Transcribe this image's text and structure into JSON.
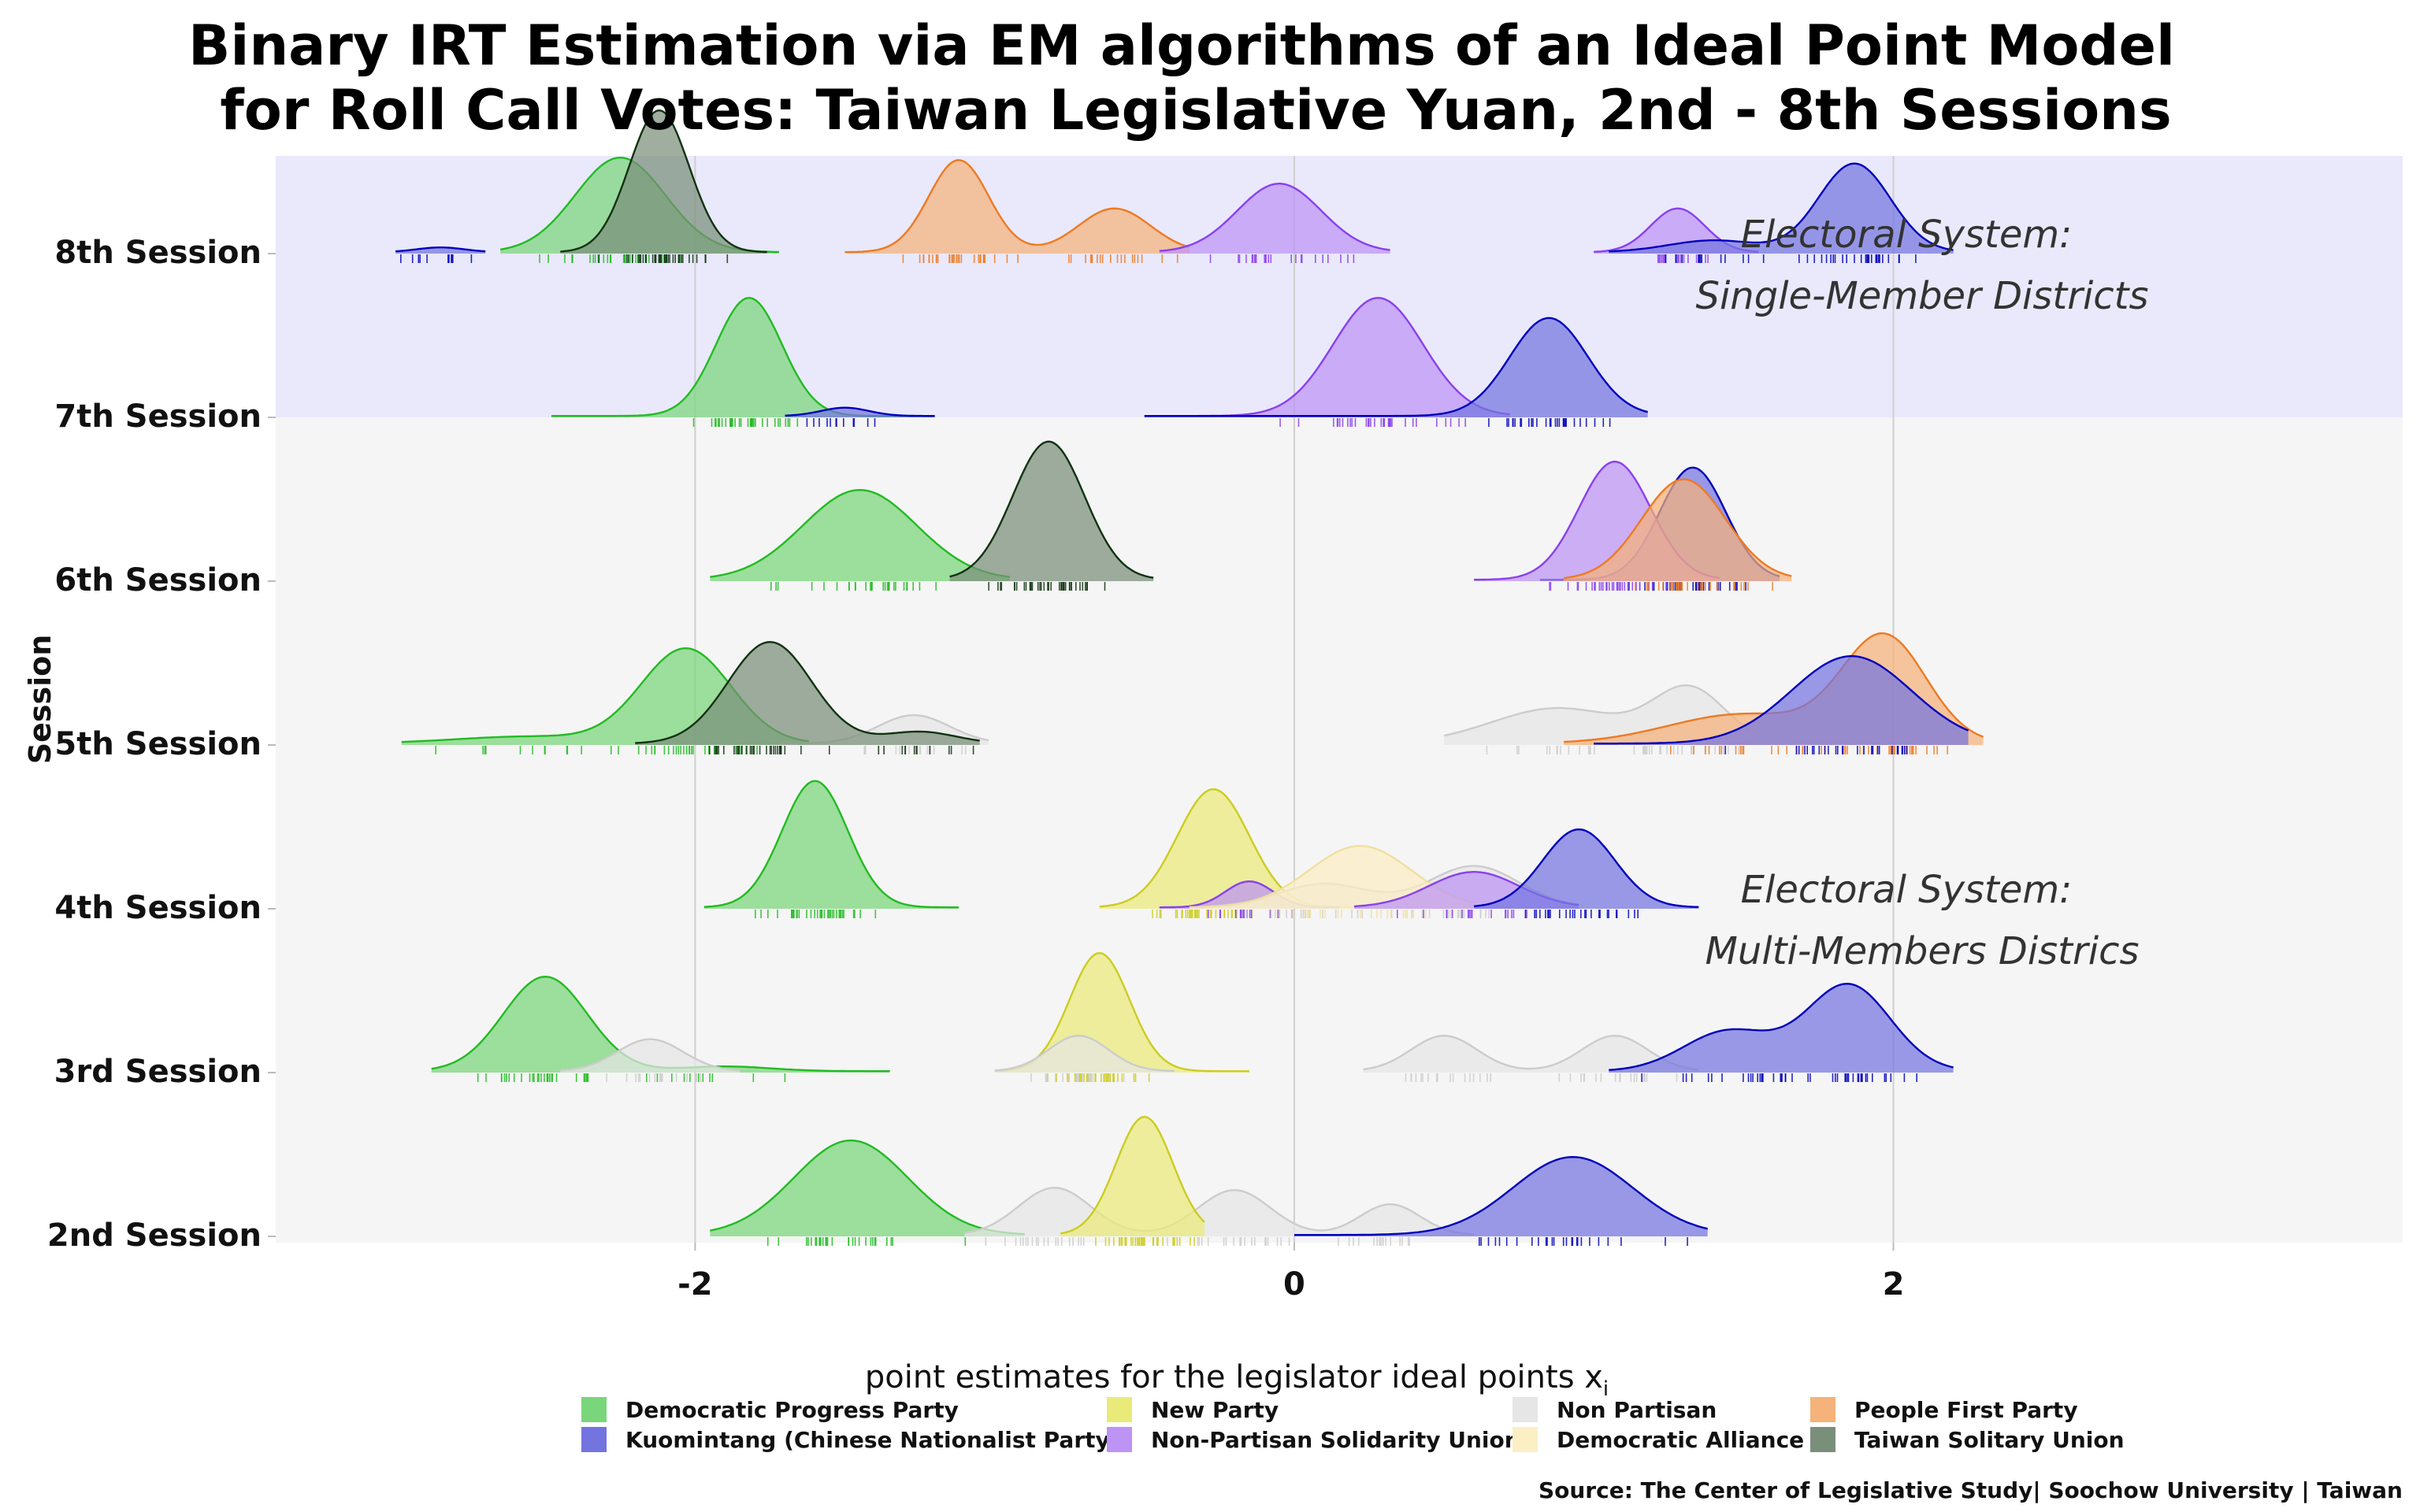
{
  "chart_data": {
    "type": "ridgeline",
    "title_lines": [
      "Binary IRT Estimation via EM algorithms  of an Ideal Point Model",
      "for Roll Call Votes: Taiwan Legislative Yuan, 2nd - 8th Sessions"
    ],
    "xlabel": "point estimates for the legislator ideal points x",
    "xlabel_subscript": "i",
    "ylabel": "Session",
    "xlim": [
      -3.4,
      3.7
    ],
    "x_ticks": [
      -2,
      0,
      2
    ],
    "x_tick_labels": [
      "-2",
      "0",
      "2"
    ],
    "grid": true,
    "sessions": [
      "2nd Session",
      "3rd Session",
      "4th Session",
      "5th Session",
      "6th Session",
      "7th Session",
      "8th Session"
    ],
    "annotations": [
      {
        "lines": [
          "Electoral System:",
          "Single-Member Districts"
        ],
        "session_anchor": "8th Session"
      },
      {
        "lines": [
          "Electoral System:",
          "Multi-Members Districs"
        ],
        "session_anchor": "4th Session"
      }
    ],
    "regions": [
      {
        "sessions": [
          "7th Session",
          "8th Session"
        ],
        "color": "#e9e9fb"
      },
      {
        "sessions": [
          "2nd Session",
          "3rd Session",
          "4th Session",
          "5th Session",
          "6th Session"
        ],
        "color": "#f5f5f5"
      }
    ],
    "parties": [
      {
        "name": "Democratic Progress Party",
        "fill": "#7ad67a",
        "stroke": "#22bb22"
      },
      {
        "name": "Kuomintang (Chinese Nationalist Party)",
        "fill": "#7474e0",
        "stroke": "#0000bb"
      },
      {
        "name": "New Party",
        "fill": "#eaea7a",
        "stroke": "#cccc22"
      },
      {
        "name": "Non-Partisan Solidarity Union",
        "fill": "#bd93f5",
        "stroke": "#8a40ee"
      },
      {
        "name": "Non Partisan",
        "fill": "#e6e6e6",
        "stroke": "#cccccc"
      },
      {
        "name": "Democratic Alliance",
        "fill": "#fcefc4",
        "stroke": "#f0dfa0"
      },
      {
        "name": "People First Party",
        "fill": "#f5b27a",
        "stroke": "#ee7a22"
      },
      {
        "name": "Taiwan Solitary Union",
        "fill": "#7a8f7a",
        "stroke": "#113311"
      }
    ],
    "series": [
      {
        "session": "2nd Session",
        "party": "Democratic Progress Party",
        "range": [
          -1.95,
          -0.9
        ],
        "peaks": [
          {
            "mu": -1.48,
            "sd": 0.19,
            "h": 0.8
          }
        ]
      },
      {
        "session": "2nd Session",
        "party": "Non Partisan",
        "range": [
          -1.1,
          0.6
        ],
        "peaks": [
          {
            "mu": -0.8,
            "sd": 0.12,
            "h": 0.4
          },
          {
            "mu": -0.2,
            "sd": 0.12,
            "h": 0.38
          },
          {
            "mu": 0.32,
            "sd": 0.1,
            "h": 0.26
          }
        ]
      },
      {
        "session": "2nd Session",
        "party": "New Party",
        "range": [
          -0.78,
          -0.3
        ],
        "peaks": [
          {
            "mu": -0.5,
            "sd": 0.095,
            "h": 1.0
          }
        ]
      },
      {
        "session": "2nd Session",
        "party": "Kuomintang (Chinese Nationalist Party)",
        "range": [
          0.0,
          1.38
        ],
        "peaks": [
          {
            "mu": 0.93,
            "sd": 0.2,
            "h": 0.66
          }
        ]
      },
      {
        "session": "3rd Session",
        "party": "Democratic Progress Party",
        "range": [
          -2.88,
          -1.35
        ],
        "peaks": [
          {
            "mu": -2.5,
            "sd": 0.14,
            "h": 0.8
          },
          {
            "mu": -1.9,
            "sd": 0.15,
            "h": 0.04
          }
        ]
      },
      {
        "session": "3rd Session",
        "party": "Non Partisan",
        "range": [
          -2.45,
          -1.85
        ],
        "peaks": [
          {
            "mu": -2.15,
            "sd": 0.11,
            "h": 0.27
          }
        ]
      },
      {
        "session": "3rd Session",
        "party": "New Party",
        "range": [
          -1.0,
          -0.15
        ],
        "peaks": [
          {
            "mu": -0.65,
            "sd": 0.1,
            "h": 1.0
          }
        ]
      },
      {
        "session": "3rd Session",
        "party": "Non Partisan",
        "range": [
          -1.0,
          -0.4
        ],
        "peaks": [
          {
            "mu": -0.72,
            "sd": 0.1,
            "h": 0.3
          }
        ]
      },
      {
        "session": "3rd Session",
        "party": "Non Partisan",
        "range": [
          0.23,
          1.35
        ],
        "peaks": [
          {
            "mu": 0.5,
            "sd": 0.11,
            "h": 0.3
          },
          {
            "mu": 1.07,
            "sd": 0.11,
            "h": 0.3
          }
        ]
      },
      {
        "session": "3rd Session",
        "party": "Kuomintang (Chinese Nationalist Party)",
        "range": [
          1.05,
          2.2
        ],
        "peaks": [
          {
            "mu": 1.45,
            "sd": 0.15,
            "h": 0.34
          },
          {
            "mu": 1.85,
            "sd": 0.14,
            "h": 0.73
          }
        ]
      },
      {
        "session": "4th Session",
        "party": "Democratic Progress Party",
        "range": [
          -1.97,
          -1.12
        ],
        "peaks": [
          {
            "mu": -1.6,
            "sd": 0.11,
            "h": 1.07
          }
        ]
      },
      {
        "session": "4th Session",
        "party": "New Party",
        "range": [
          -0.65,
          0.25
        ],
        "peaks": [
          {
            "mu": -0.27,
            "sd": 0.12,
            "h": 1.0
          }
        ]
      },
      {
        "session": "4th Session",
        "party": "Non-Partisan Solidarity Union",
        "range": [
          -0.45,
          0.15
        ],
        "peaks": [
          {
            "mu": -0.15,
            "sd": 0.08,
            "h": 0.22
          }
        ]
      },
      {
        "session": "4th Session",
        "party": "Non Partisan",
        "range": [
          -0.3,
          0.95
        ],
        "peaks": [
          {
            "mu": 0.1,
            "sd": 0.15,
            "h": 0.2
          },
          {
            "mu": 0.6,
            "sd": 0.15,
            "h": 0.35
          }
        ]
      },
      {
        "session": "4th Session",
        "party": "Democratic Alliance",
        "range": [
          -0.35,
          0.6
        ],
        "peaks": [
          {
            "mu": 0.22,
            "sd": 0.17,
            "h": 0.52
          }
        ]
      },
      {
        "session": "4th Session",
        "party": "Non-Partisan Solidarity Union",
        "range": [
          0.2,
          0.95
        ],
        "peaks": [
          {
            "mu": 0.6,
            "sd": 0.15,
            "h": 0.3
          }
        ]
      },
      {
        "session": "4th Session",
        "party": "Kuomintang (Chinese Nationalist Party)",
        "range": [
          0.6,
          1.35
        ],
        "peaks": [
          {
            "mu": 0.95,
            "sd": 0.12,
            "h": 0.66
          }
        ]
      },
      {
        "session": "5th Session",
        "party": "Democratic Progress Party",
        "range": [
          -2.98,
          -1.62
        ],
        "peaks": [
          {
            "mu": -2.03,
            "sd": 0.15,
            "h": 0.8
          },
          {
            "mu": -2.55,
            "sd": 0.25,
            "h": 0.06
          }
        ]
      },
      {
        "session": "5th Session",
        "party": "Non Partisan",
        "range": [
          -1.72,
          -1.02
        ],
        "peaks": [
          {
            "mu": -1.27,
            "sd": 0.12,
            "h": 0.24
          }
        ]
      },
      {
        "session": "5th Session",
        "party": "Taiwan Solitary Union",
        "range": [
          -2.2,
          -1.05
        ],
        "peaks": [
          {
            "mu": -1.75,
            "sd": 0.14,
            "h": 0.86
          },
          {
            "mu": -1.25,
            "sd": 0.12,
            "h": 0.1
          }
        ]
      },
      {
        "session": "5th Session",
        "party": "Non Partisan",
        "range": [
          0.5,
          1.52
        ],
        "peaks": [
          {
            "mu": 0.88,
            "sd": 0.22,
            "h": 0.3
          },
          {
            "mu": 1.32,
            "sd": 0.12,
            "h": 0.45
          }
        ]
      },
      {
        "session": "5th Session",
        "party": "People First Party",
        "range": [
          0.9,
          2.3
        ],
        "peaks": [
          {
            "mu": 1.97,
            "sd": 0.14,
            "h": 0.89
          },
          {
            "mu": 1.5,
            "sd": 0.25,
            "h": 0.25
          }
        ]
      },
      {
        "session": "5th Session",
        "party": "Kuomintang (Chinese Nationalist Party)",
        "range": [
          1.0,
          2.25
        ],
        "peaks": [
          {
            "mu": 1.86,
            "sd": 0.2,
            "h": 0.74
          }
        ]
      },
      {
        "session": "6th Session",
        "party": "Democratic Progress Party",
        "range": [
          -1.95,
          -0.95
        ],
        "peaks": [
          {
            "mu": -1.45,
            "sd": 0.19,
            "h": 0.76
          }
        ]
      },
      {
        "session": "6th Session",
        "party": "Taiwan Solitary Union",
        "range": [
          -1.15,
          -0.47
        ],
        "peaks": [
          {
            "mu": -0.82,
            "sd": 0.12,
            "h": 1.17
          }
        ]
      },
      {
        "session": "6th Session",
        "party": "Kuomintang (Chinese Nationalist Party)",
        "range": [
          0.82,
          1.62
        ],
        "peaks": [
          {
            "mu": 1.33,
            "sd": 0.11,
            "h": 0.95
          }
        ]
      },
      {
        "session": "6th Session",
        "party": "Non-Partisan Solidarity Union",
        "range": [
          0.6,
          1.42
        ],
        "peaks": [
          {
            "mu": 1.07,
            "sd": 0.12,
            "h": 1.0
          }
        ]
      },
      {
        "session": "6th Session",
        "party": "People First Party",
        "range": [
          0.9,
          1.66
        ],
        "peaks": [
          {
            "mu": 1.3,
            "sd": 0.14,
            "h": 0.85
          }
        ]
      },
      {
        "session": "7th Session",
        "party": "Democratic Progress Party",
        "range": [
          -2.48,
          -1.2
        ],
        "peaks": [
          {
            "mu": -1.82,
            "sd": 0.11,
            "h": 1.0
          }
        ]
      },
      {
        "session": "7th Session",
        "party": "Kuomintang (Chinese Nationalist Party)",
        "range": [
          -1.7,
          -1.2
        ],
        "peaks": [
          {
            "mu": -1.5,
            "sd": 0.08,
            "h": 0.07
          }
        ]
      },
      {
        "session": "7th Session",
        "party": "Non-Partisan Solidarity Union",
        "range": [
          -0.5,
          0.72
        ],
        "peaks": [
          {
            "mu": 0.28,
            "sd": 0.15,
            "h": 1.0
          }
        ]
      },
      {
        "session": "7th Session",
        "party": "Kuomintang (Chinese Nationalist Party)",
        "range": [
          -0.5,
          1.18
        ],
        "peaks": [
          {
            "mu": 0.85,
            "sd": 0.13,
            "h": 0.83
          }
        ]
      },
      {
        "session": "8th Session",
        "party": "Kuomintang (Chinese Nationalist Party)",
        "range": [
          -3.0,
          -2.7
        ],
        "peaks": [
          {
            "mu": -2.85,
            "sd": 0.08,
            "h": 0.04
          }
        ]
      },
      {
        "session": "8th Session",
        "party": "Democratic Progress Party",
        "range": [
          -2.65,
          -1.72
        ],
        "peaks": [
          {
            "mu": -2.25,
            "sd": 0.15,
            "h": 0.8
          }
        ]
      },
      {
        "session": "8th Session",
        "party": "Taiwan Solitary Union",
        "range": [
          -2.45,
          -1.76
        ],
        "peaks": [
          {
            "mu": -2.12,
            "sd": 0.1,
            "h": 1.2
          }
        ]
      },
      {
        "session": "8th Session",
        "party": "People First Party",
        "range": [
          -1.5,
          -0.35
        ],
        "peaks": [
          {
            "mu": -1.12,
            "sd": 0.1,
            "h": 0.78
          },
          {
            "mu": -0.6,
            "sd": 0.12,
            "h": 0.37
          }
        ]
      },
      {
        "session": "8th Session",
        "party": "Non-Partisan Solidarity Union",
        "range": [
          -0.45,
          0.32
        ],
        "peaks": [
          {
            "mu": -0.05,
            "sd": 0.14,
            "h": 0.58
          }
        ]
      },
      {
        "session": "8th Session",
        "party": "Non-Partisan Solidarity Union",
        "range": [
          1.0,
          1.55
        ],
        "peaks": [
          {
            "mu": 1.28,
            "sd": 0.09,
            "h": 0.37
          }
        ]
      },
      {
        "session": "8th Session",
        "party": "Kuomintang (Chinese Nationalist Party)",
        "range": [
          1.05,
          2.2
        ],
        "peaks": [
          {
            "mu": 1.87,
            "sd": 0.12,
            "h": 0.75
          },
          {
            "mu": 1.4,
            "sd": 0.15,
            "h": 0.1
          }
        ]
      }
    ],
    "legend_placement": "bottom",
    "source": "Source: The Center of Legislative Study| Soochow University | Taiwan"
  }
}
